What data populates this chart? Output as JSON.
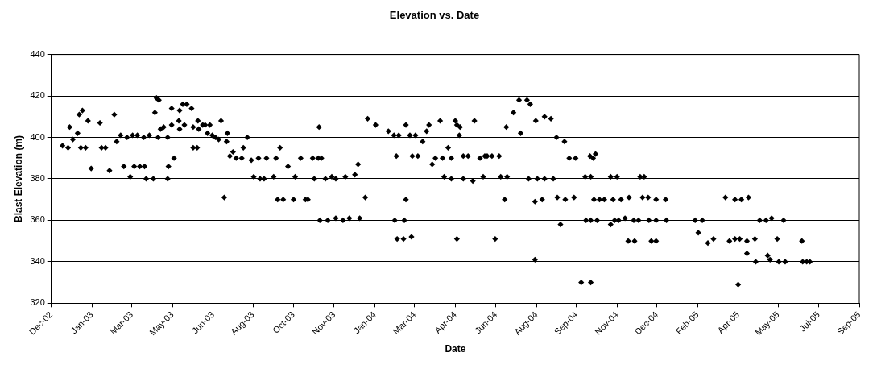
{
  "chart_data": {
    "type": "scatter",
    "title": "Elevation vs. Date",
    "xlabel": "Date",
    "ylabel": "Blast Elevation (m)",
    "x": [
      "2002-12-15",
      "2002-12-22",
      "2002-12-24",
      "2002-12-28",
      "2003-01-03",
      "2003-01-05",
      "2003-01-09",
      "2003-01-07",
      "2003-01-13",
      "2003-01-16",
      "2003-01-20",
      "2003-01-31",
      "2003-02-02",
      "2003-02-07",
      "2003-02-12",
      "2003-02-18",
      "2003-02-21",
      "2003-02-26",
      "2003-03-02",
      "2003-03-06",
      "2003-03-10",
      "2003-03-13",
      "2003-03-15",
      "2003-03-19",
      "2003-03-22",
      "2003-03-28",
      "2003-03-30",
      "2003-03-27",
      "2003-04-03",
      "2003-04-08",
      "2003-04-10",
      "2003-04-12",
      "2003-04-15",
      "2003-04-14",
      "2003-04-17",
      "2003-04-21",
      "2003-04-26",
      "2003-04-26",
      "2003-04-27",
      "2003-05-01",
      "2003-05-01",
      "2003-05-04",
      "2003-05-10",
      "2003-05-11",
      "2003-05-11",
      "2003-05-15",
      "2003-05-20",
      "2003-05-17",
      "2003-05-26",
      "2003-05-28",
      "2003-05-28",
      "2003-06-02",
      "2003-06-03",
      "2003-06-04",
      "2003-06-09",
      "2003-06-12",
      "2003-06-15",
      "2003-06-18",
      "2003-06-21",
      "2003-06-25",
      "2003-06-29",
      "2003-07-02",
      "2003-07-06",
      "2003-07-09",
      "2003-07-10",
      "2003-07-13",
      "2003-07-17",
      "2003-07-21",
      "2003-07-28",
      "2003-07-30",
      "2003-08-04",
      "2003-08-09",
      "2003-08-12",
      "2003-08-18",
      "2003-08-28",
      "2003-09-09",
      "2003-09-14",
      "2003-08-20",
      "2003-08-25",
      "2003-09-06",
      "2003-09-11",
      "2003-09-18",
      "2003-09-24",
      "2003-10-01",
      "2003-10-03",
      "2003-10-10",
      "2003-10-16",
      "2003-10-19",
      "2003-10-25",
      "2003-11-01",
      "2003-11-05",
      "2003-10-27",
      "2003-11-02",
      "2003-11-03",
      "2003-11-13",
      "2003-11-23",
      "2003-12-02",
      "2003-12-10",
      "2003-11-10",
      "2003-11-18",
      "2003-11-23",
      "2003-12-05",
      "2003-12-17",
      "2003-12-21",
      "2003-12-23",
      "2003-12-30",
      "2004-01-02",
      "2004-01-12",
      "2004-01-28",
      "2004-02-04",
      "2004-02-10",
      "2004-02-07",
      "2004-02-05",
      "2004-02-08",
      "2004-02-16",
      "2004-02-26",
      "2004-02-17",
      "2004-02-19",
      "2004-02-19",
      "2004-02-24",
      "2004-03-02",
      "2004-02-27",
      "2004-03-05",
      "2004-03-11",
      "2004-03-16",
      "2004-03-19",
      "2004-03-23",
      "2004-03-27",
      "2004-04-02",
      "2004-04-07",
      "2004-04-05",
      "2004-04-16",
      "2004-04-12",
      "2004-04-16",
      "2004-04-21",
      "2004-04-23",
      "2004-04-27",
      "2004-04-26",
      "2004-04-23",
      "2004-05-01",
      "2004-05-01",
      "2004-05-07",
      "2004-05-13",
      "2004-05-15",
      "2004-05-22",
      "2004-05-28",
      "2004-05-26",
      "2004-05-31",
      "2004-06-06",
      "2004-06-15",
      "2004-06-10",
      "2004-06-17",
      "2004-06-25",
      "2004-06-22",
      "2004-06-24",
      "2004-07-03",
      "2004-07-10",
      "2004-07-20",
      "2004-07-24",
      "2004-07-12",
      "2004-07-30",
      "2004-07-30",
      "2004-07-22",
      "2004-08-02",
      "2004-08-11",
      "2004-08-22",
      "2004-07-31",
      "2004-08-08",
      "2004-08-11",
      "2004-08-19",
      "2004-08-26",
      "2004-08-31",
      "2004-09-05",
      "2004-08-27",
      "2004-09-06",
      "2004-09-11",
      "2004-09-19",
      "2004-09-17",
      "2004-10-01",
      "2004-10-08",
      "2004-10-02",
      "2004-10-08",
      "2004-10-07",
      "2004-10-11",
      "2004-10-14",
      "2004-10-12",
      "2004-10-19",
      "2004-10-25",
      "2004-11-05",
      "2004-10-16",
      "2004-11-02",
      "2004-11-10",
      "2004-11-02",
      "2004-11-07",
      "2004-11-12",
      "2004-11-20",
      "2004-11-15",
      "2004-11-25",
      "2004-11-24",
      "2004-12-02",
      "2004-12-01",
      "2004-12-07",
      "2004-12-09",
      "2004-12-14",
      "2004-12-12",
      "2004-12-19",
      "2004-12-29",
      "2005-01-10",
      "2004-12-20",
      "2004-12-29",
      "2005-01-11",
      "2004-12-23",
      "2004-12-29",
      "2005-02-16",
      "2005-02-25",
      "2005-02-20",
      "2005-03-04",
      "2005-03-11",
      "2004-09-26",
      "2004-10-08",
      "2005-03-26",
      "2005-04-07",
      "2005-04-15",
      "2005-04-24",
      "2005-03-31",
      "2005-04-07",
      "2005-04-13",
      "2005-04-22",
      "2005-05-02",
      "2005-04-22",
      "2005-05-03",
      "2005-05-08",
      "2005-05-16",
      "2005-05-23",
      "2005-05-18",
      "2005-05-21",
      "2005-05-30",
      "2005-06-01",
      "2005-06-09",
      "2005-06-07",
      "2005-06-30",
      "2005-07-01",
      "2005-07-06",
      "2005-07-10",
      "2005-04-11"
    ],
    "values": [
      396,
      395,
      405,
      399,
      402,
      411,
      413,
      395,
      395,
      408,
      385,
      407,
      395,
      395,
      384,
      411,
      398,
      401,
      386,
      400,
      381,
      401,
      386,
      401,
      386,
      386,
      380,
      400,
      401,
      380,
      412,
      419,
      418,
      400,
      404,
      405,
      380,
      400,
      386,
      406,
      414,
      390,
      408,
      404,
      413,
      416,
      416,
      406,
      414,
      405,
      395,
      395,
      408,
      404,
      406,
      406,
      402,
      406,
      401,
      400,
      399,
      408,
      371,
      398,
      402,
      391,
      393,
      390,
      390,
      395,
      400,
      389,
      381,
      390,
      390,
      390,
      395,
      380,
      380,
      381,
      370,
      370,
      386,
      370,
      381,
      390,
      370,
      370,
      390,
      390,
      390,
      380,
      405,
      360,
      360,
      361,
      360,
      361,
      380,
      381,
      380,
      381,
      382,
      387,
      361,
      371,
      409,
      406,
      403,
      401,
      401,
      391,
      360,
      351,
      351,
      352,
      360,
      406,
      370,
      401,
      401,
      391,
      391,
      398,
      403,
      406,
      387,
      390,
      408,
      381,
      390,
      390,
      395,
      380,
      408,
      406,
      405,
      401,
      351,
      380,
      391,
      391,
      379,
      408,
      390,
      391,
      381,
      391,
      391,
      391,
      351,
      381,
      381,
      370,
      405,
      412,
      418,
      418,
      416,
      402,
      369,
      341,
      380,
      380,
      380,
      380,
      408,
      370,
      410,
      409,
      400,
      358,
      398,
      371,
      370,
      390,
      390,
      371,
      381,
      381,
      360,
      360,
      391,
      390,
      392,
      370,
      370,
      370,
      370,
      360,
      381,
      381,
      358,
      360,
      360,
      361,
      370,
      371,
      350,
      350,
      360,
      360,
      381,
      381,
      371,
      371,
      370,
      370,
      360,
      360,
      360,
      350,
      350,
      360,
      360,
      354,
      349,
      351,
      330,
      330,
      371,
      370,
      370,
      371,
      350,
      351,
      351,
      350,
      351,
      344,
      340,
      360,
      360,
      361,
      343,
      341,
      351,
      340,
      340,
      360,
      350,
      340,
      340,
      340,
      329
    ],
    "color": "#000000",
    "marker": "diamond",
    "xlim": [
      "2002-12-01",
      "2005-09-10"
    ],
    "xticks": [
      {
        "value": "2002-12-01",
        "label": "Dec-02"
      },
      {
        "value": "2003-01-21",
        "label": "Jan-03"
      },
      {
        "value": "2003-03-12",
        "label": "Mar-03"
      },
      {
        "value": "2003-05-02",
        "label": "May-03"
      },
      {
        "value": "2003-06-22",
        "label": "Jun-03"
      },
      {
        "value": "2003-08-11",
        "label": "Aug-03"
      },
      {
        "value": "2003-10-01",
        "label": "Oct-03"
      },
      {
        "value": "2003-11-21",
        "label": "Nov-03"
      },
      {
        "value": "2004-01-11",
        "label": "Jan-04"
      },
      {
        "value": "2004-03-01",
        "label": "Mar-04"
      },
      {
        "value": "2004-04-21",
        "label": "Apr-04"
      },
      {
        "value": "2004-06-11",
        "label": "Jun-04"
      },
      {
        "value": "2004-08-01",
        "label": "Aug-04"
      },
      {
        "value": "2004-09-20",
        "label": "Sep-04"
      },
      {
        "value": "2004-11-10",
        "label": "Nov-04"
      },
      {
        "value": "2004-12-30",
        "label": "Dec-04"
      },
      {
        "value": "2005-02-19",
        "label": "Feb-05"
      },
      {
        "value": "2005-04-11",
        "label": "Apr-05"
      },
      {
        "value": "2005-05-31",
        "label": "May-05"
      },
      {
        "value": "2005-07-21",
        "label": "Jul-05"
      },
      {
        "value": "2005-09-10",
        "label": "Sep-05"
      }
    ],
    "ylim": [
      320,
      440
    ],
    "yticks": [
      320,
      340,
      360,
      380,
      400,
      420,
      440
    ],
    "grid": "y",
    "legend": false
  }
}
